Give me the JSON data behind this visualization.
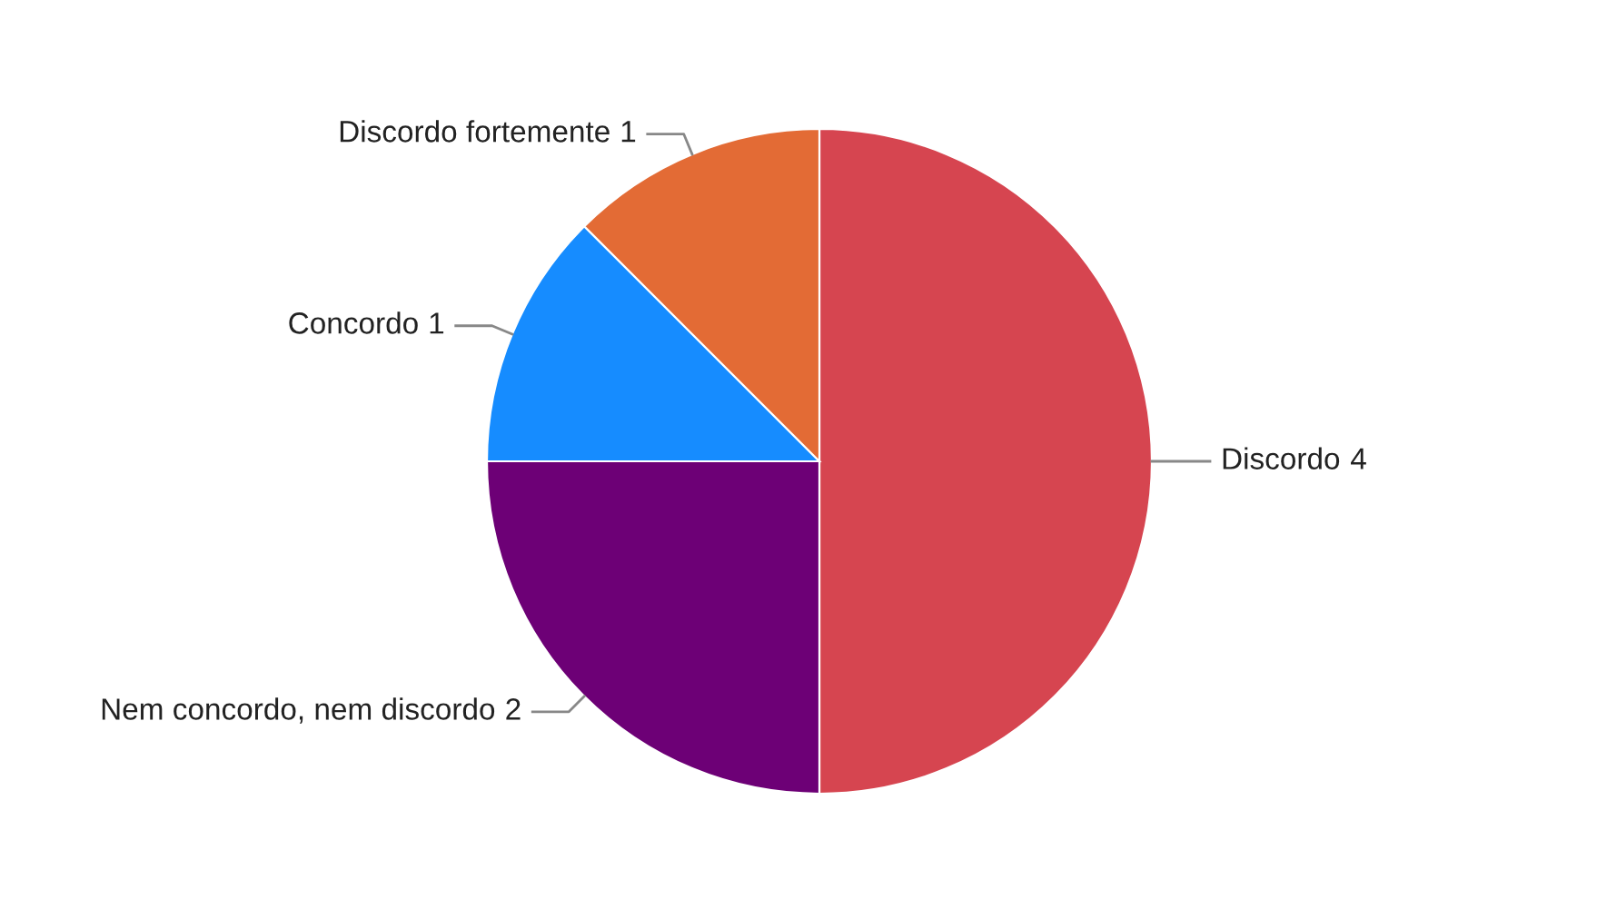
{
  "chart_data": {
    "type": "pie",
    "categories": [
      "Discordo",
      "Nem concordo, nem discordo",
      "Concordo",
      "Discordo fortemente"
    ],
    "values": [
      4,
      2,
      1,
      1
    ],
    "colors": [
      "#d64550",
      "#6d0076",
      "#168cff",
      "#e36b35"
    ],
    "data_labels": true
  }
}
